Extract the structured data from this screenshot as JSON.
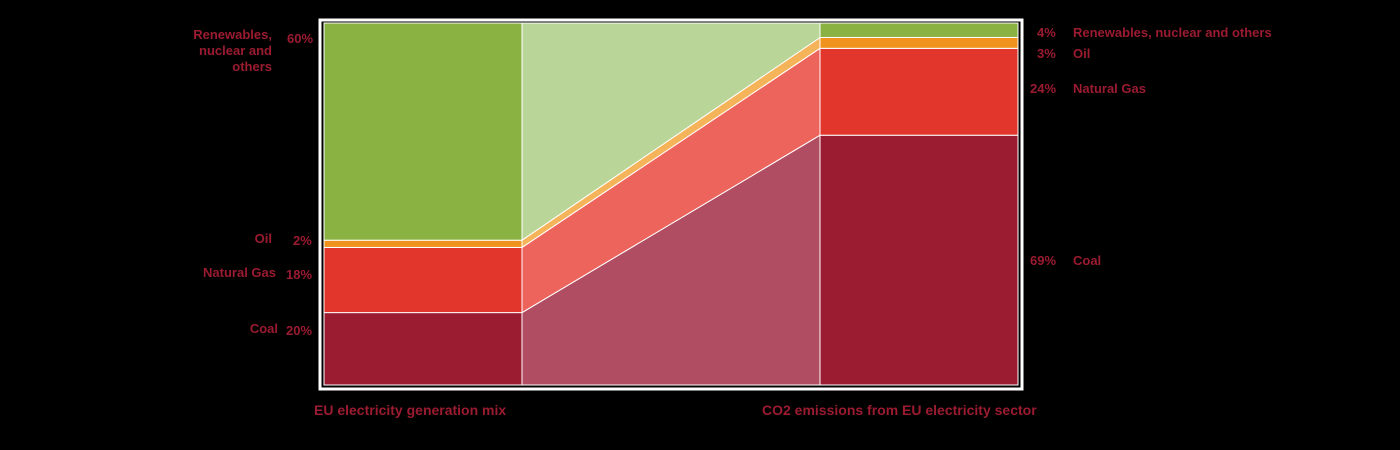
{
  "chart_data": {
    "type": "area",
    "title": "",
    "colors": {
      "renewables": "#8ab243",
      "oil": "#f0921e",
      "natural_gas": "#e2352b",
      "coal": "#9b1b30",
      "renewables_light": "#b9d597",
      "oil_light": "#f6b45a",
      "natural_gas_light": "#ec645c",
      "coal_light": "#b04d62",
      "label_text": "#9b1b30",
      "frame": "#ffffff"
    },
    "left_bar": {
      "label": "EU electricity generation mix",
      "segments": [
        {
          "key": "coal",
          "name": "Coal",
          "value": 20,
          "value_label": "20%"
        },
        {
          "key": "natural_gas",
          "name": "Natural Gas",
          "value": 18,
          "value_label": "18%"
        },
        {
          "key": "oil",
          "name": "Oil",
          "value": 2,
          "value_label": "2%"
        },
        {
          "key": "renewables",
          "name": "Renewables, nuclear and others",
          "value": 60,
          "value_label": "60%"
        }
      ]
    },
    "right_bar": {
      "label": "CO2 emissions from EU electricity sector",
      "segments": [
        {
          "key": "coal",
          "name": "Coal",
          "value": 69,
          "value_label": "69%"
        },
        {
          "key": "natural_gas",
          "name": "Natural Gas",
          "value": 24,
          "value_label": "24%"
        },
        {
          "key": "oil",
          "name": "Oil",
          "value": 3,
          "value_label": "3%"
        },
        {
          "key": "renewables",
          "name": "Renewables, nuclear and others",
          "value": 4,
          "value_label": "4%"
        }
      ]
    },
    "ylim": [
      0,
      100
    ]
  }
}
